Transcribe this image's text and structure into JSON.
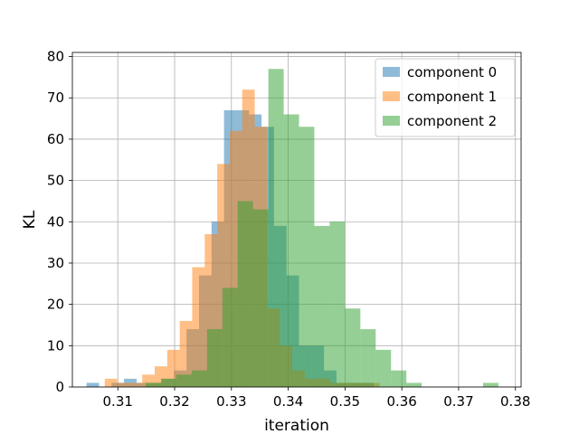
{
  "chart_data": {
    "type": "bar",
    "subtype": "histogram",
    "title": "",
    "xlabel": "iteration",
    "ylabel": "KL",
    "xlim": [
      0.302,
      0.381
    ],
    "ylim": [
      0,
      81
    ],
    "xticks": [
      0.31,
      0.32,
      0.33,
      0.34,
      0.35,
      0.36,
      0.37,
      0.38
    ],
    "xtick_labels": [
      "0.31",
      "0.32",
      "0.33",
      "0.34",
      "0.35",
      "0.36",
      "0.37",
      "0.38"
    ],
    "yticks": [
      0,
      10,
      20,
      30,
      40,
      50,
      60,
      70,
      80
    ],
    "ytick_labels": [
      "0",
      "10",
      "20",
      "30",
      "40",
      "50",
      "60",
      "70",
      "80"
    ],
    "grid": true,
    "legend_position": "top-right",
    "bar_opacity": 0.5,
    "series": [
      {
        "name": "component 0",
        "color": "#1f77b4",
        "bins": [
          [
            0.3045,
            0.3067,
            1
          ],
          [
            0.3089,
            0.3111,
            1
          ],
          [
            0.3111,
            0.3133,
            2
          ],
          [
            0.3133,
            0.3155,
            1
          ],
          [
            0.3155,
            0.3177,
            1
          ],
          [
            0.3177,
            0.3199,
            2
          ],
          [
            0.3199,
            0.3221,
            4
          ],
          [
            0.3221,
            0.3243,
            14
          ],
          [
            0.3243,
            0.3265,
            27
          ],
          [
            0.3265,
            0.3287,
            40
          ],
          [
            0.3287,
            0.3309,
            67
          ],
          [
            0.3309,
            0.3331,
            67
          ],
          [
            0.3331,
            0.3353,
            66
          ],
          [
            0.3353,
            0.3375,
            63
          ],
          [
            0.3375,
            0.3397,
            39
          ],
          [
            0.3397,
            0.3419,
            27
          ],
          [
            0.3419,
            0.3441,
            10
          ],
          [
            0.3441,
            0.3463,
            10
          ],
          [
            0.3463,
            0.3485,
            4
          ],
          [
            0.3485,
            0.3507,
            1
          ],
          [
            0.3507,
            0.3529,
            1
          ],
          [
            0.3529,
            0.3551,
            1
          ]
        ]
      },
      {
        "name": "component 1",
        "color": "#ff7f0e",
        "bins": [
          [
            0.3077,
            0.3099,
            2
          ],
          [
            0.3099,
            0.3121,
            1
          ],
          [
            0.3121,
            0.3143,
            1
          ],
          [
            0.3143,
            0.3165,
            3
          ],
          [
            0.3165,
            0.3187,
            5
          ],
          [
            0.3187,
            0.3209,
            9
          ],
          [
            0.3209,
            0.3231,
            16
          ],
          [
            0.3231,
            0.3253,
            29
          ],
          [
            0.3253,
            0.3275,
            37
          ],
          [
            0.3275,
            0.3297,
            54
          ],
          [
            0.3297,
            0.3319,
            62
          ],
          [
            0.3319,
            0.3341,
            72
          ],
          [
            0.3341,
            0.3363,
            63
          ],
          [
            0.3363,
            0.3385,
            19
          ],
          [
            0.3385,
            0.3407,
            10
          ],
          [
            0.3407,
            0.3429,
            4
          ],
          [
            0.3429,
            0.3451,
            2
          ],
          [
            0.3451,
            0.3473,
            2
          ],
          [
            0.3473,
            0.3495,
            1
          ],
          [
            0.3495,
            0.3517,
            1
          ],
          [
            0.3517,
            0.3539,
            1
          ],
          [
            0.3539,
            0.3561,
            1
          ]
        ]
      },
      {
        "name": "component 2",
        "color": "#2ca02c",
        "bins": [
          [
            0.3149,
            0.3176,
            1
          ],
          [
            0.3176,
            0.3203,
            2
          ],
          [
            0.3203,
            0.323,
            3
          ],
          [
            0.323,
            0.3257,
            4
          ],
          [
            0.3257,
            0.3284,
            14
          ],
          [
            0.3284,
            0.3311,
            24
          ],
          [
            0.3311,
            0.3338,
            45
          ],
          [
            0.3338,
            0.3365,
            43
          ],
          [
            0.3365,
            0.3392,
            77
          ],
          [
            0.3392,
            0.3419,
            66
          ],
          [
            0.3419,
            0.3446,
            63
          ],
          [
            0.3446,
            0.3473,
            39
          ],
          [
            0.3473,
            0.35,
            40
          ],
          [
            0.35,
            0.3527,
            19
          ],
          [
            0.3527,
            0.3554,
            14
          ],
          [
            0.3554,
            0.3581,
            9
          ],
          [
            0.3581,
            0.3608,
            4
          ],
          [
            0.3608,
            0.3635,
            1
          ],
          [
            0.3635,
            0.3662,
            0
          ],
          [
            0.3662,
            0.3689,
            0
          ],
          [
            0.3689,
            0.3716,
            0
          ],
          [
            0.3716,
            0.3743,
            0
          ],
          [
            0.3743,
            0.377,
            1
          ]
        ]
      }
    ]
  }
}
